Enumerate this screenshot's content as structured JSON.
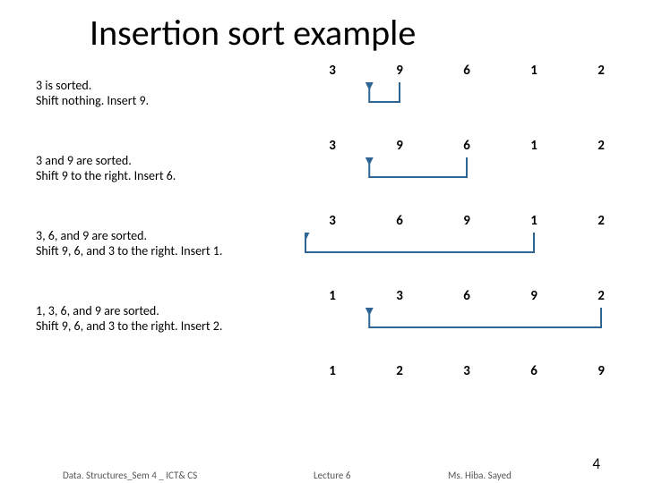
{
  "title": "Insertion sort example",
  "arrow_color": "#2e6592",
  "arrow_stroke_width": 2,
  "num_font_size": 15,
  "num_font_weight": "bold",
  "desc_font_size": 14,
  "col_positions": [
    20,
    95,
    170,
    245,
    320
  ],
  "steps": [
    {
      "desc": [
        "3 is sorted.",
        "Shift nothing. Insert 9."
      ],
      "nums": [
        "3",
        "9",
        "6",
        "1",
        "2"
      ],
      "arrows": [
        {
          "from_col": 1,
          "to_col": 0.55
        }
      ]
    },
    {
      "desc": [
        "3 and 9 are sorted.",
        "Shift 9 to the right. Insert 6."
      ],
      "nums": [
        "3",
        "9",
        "6",
        "1",
        "2"
      ],
      "arrows": [
        {
          "from_col": 2,
          "to_col": 0.55
        }
      ]
    },
    {
      "desc": [
        "3, 6, and 9 are sorted.",
        "Shift 9, 6, and 3 to the right. Insert 1."
      ],
      "nums": [
        "3",
        "6",
        "9",
        "1",
        "2"
      ],
      "arrows": [
        {
          "from_col": 3,
          "to_col": -0.4
        }
      ]
    },
    {
      "desc": [
        "1, 3, 6, and 9 are sorted.",
        "Shift 9, 6, and 3 to the right. Insert 2."
      ],
      "nums": [
        "1",
        "3",
        "6",
        "9",
        "2"
      ],
      "arrows": [
        {
          "from_col": 4,
          "to_col": 0.55
        }
      ]
    },
    {
      "desc": [],
      "nums": [
        "1",
        "2",
        "3",
        "6",
        "9"
      ],
      "arrows": []
    }
  ],
  "footer": {
    "left": "Data. Structures_Sem 4 _ ICT& CS",
    "center": "Lecture 6",
    "right": "Ms. Hiba. Sayed",
    "page": "4"
  }
}
